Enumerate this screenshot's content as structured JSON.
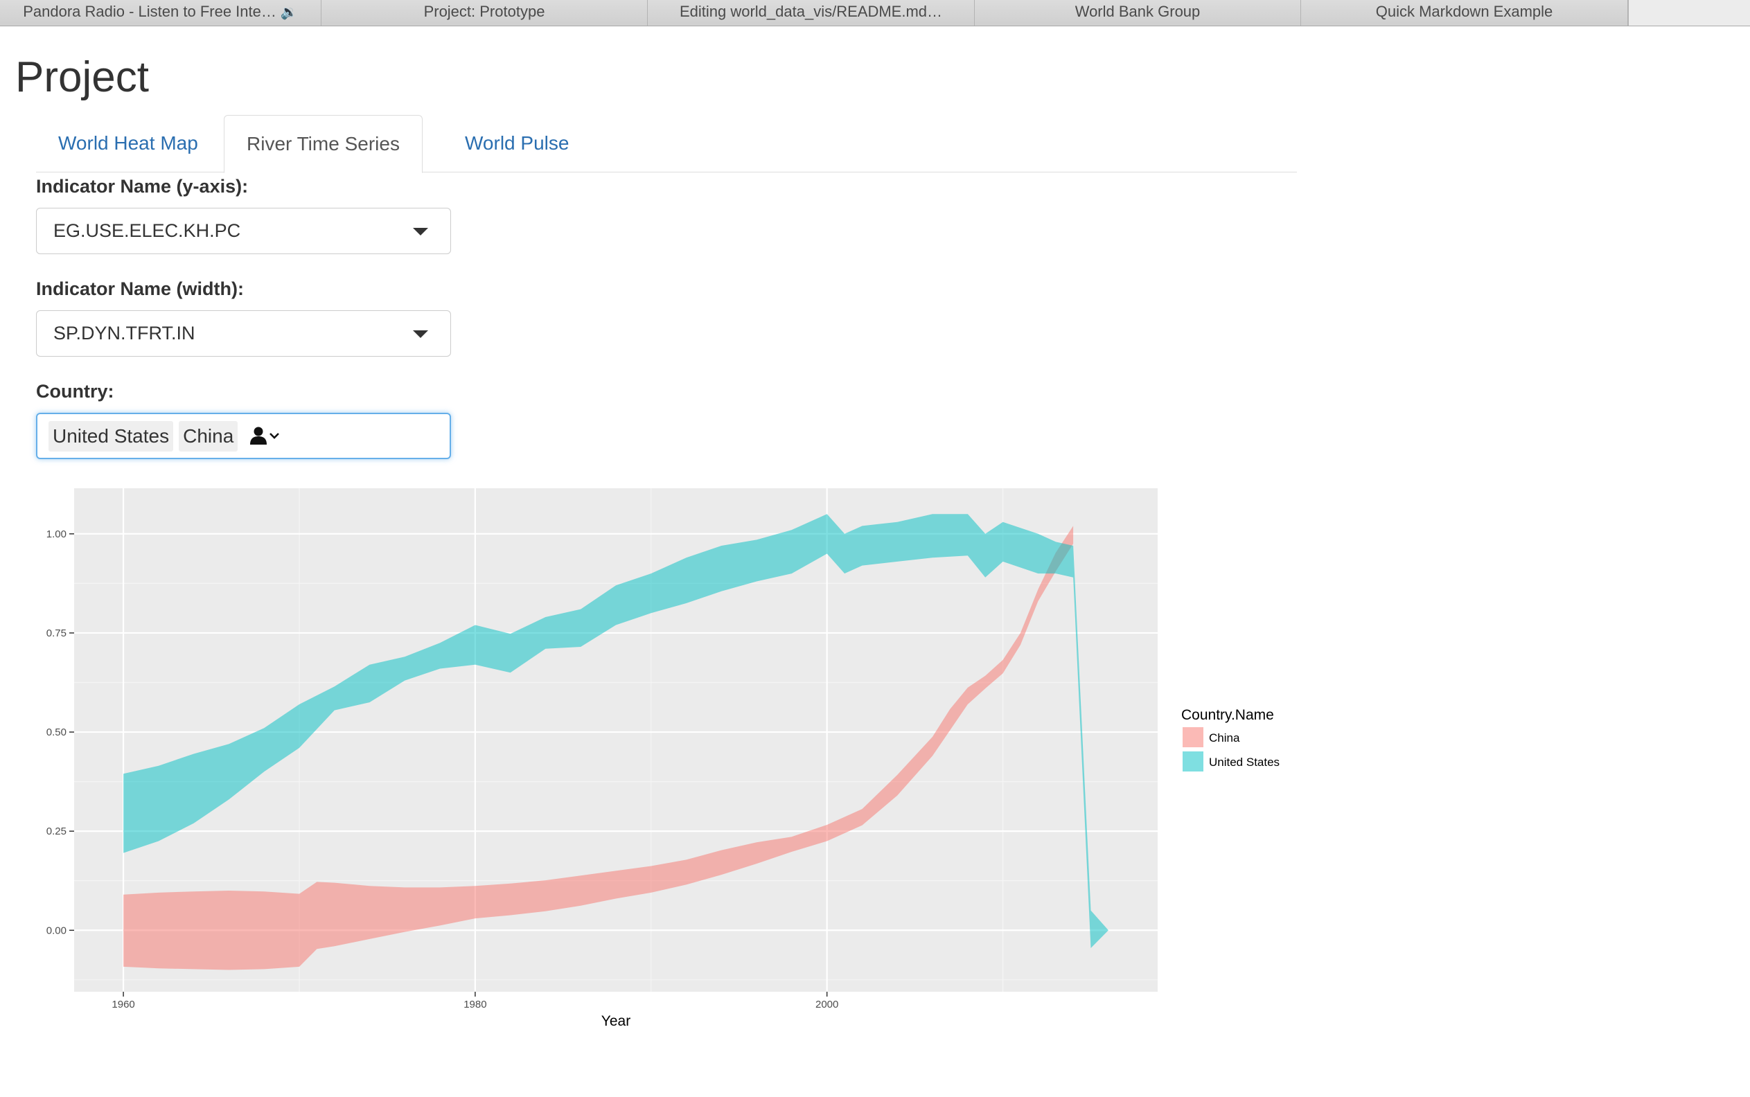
{
  "browser_tabs": [
    {
      "label": "Pandora Radio - Listen to Free Inte…",
      "icon": "speaker-icon"
    },
    {
      "label": "Project: Prototype"
    },
    {
      "label": "Editing world_data_vis/README.md…"
    },
    {
      "label": "World Bank Group"
    },
    {
      "label": "Quick Markdown Example"
    }
  ],
  "page": {
    "title": "Project"
  },
  "nav": {
    "tabs": [
      {
        "label": "World Heat Map",
        "active": false
      },
      {
        "label": "River Time Series",
        "active": true
      },
      {
        "label": "World Pulse",
        "active": false
      }
    ]
  },
  "controls": {
    "y_indicator": {
      "label": "Indicator Name (y-axis):",
      "value": "EG.USE.ELEC.KH.PC"
    },
    "width_indicator": {
      "label": "Indicator Name (width):",
      "value": "SP.DYN.TFRT.IN"
    },
    "country": {
      "label": "Country:",
      "selected": [
        "United States",
        "China"
      ]
    }
  },
  "colors": {
    "china": "#F8766D",
    "united_states": "#00BFC4",
    "panel_bg": "#EBEBEB",
    "link": "#2A6EB0",
    "focus": "#66AFE9"
  },
  "chart_data": {
    "type": "area",
    "title": "",
    "xlabel": "Year",
    "ylabel": "",
    "xlim": [
      1957.2,
      2018.8
    ],
    "ylim": [
      -0.155,
      1.115
    ],
    "x_ticks": [
      1960,
      1980,
      2000
    ],
    "y_ticks": [
      "0.00",
      "0.25",
      "0.50",
      "0.75",
      "1.00"
    ],
    "y_tick_values": [
      0,
      0.25,
      0.5,
      0.75,
      1.0
    ],
    "grid": true,
    "legend_title": "Country.Name",
    "legend_position": "right",
    "series": [
      {
        "name": "China",
        "color": "#F8766D",
        "x": [
          1960,
          1962,
          1964,
          1966,
          1968,
          1970,
          1971,
          1972,
          1974,
          1976,
          1978,
          1980,
          1982,
          1984,
          1986,
          1988,
          1990,
          1992,
          1994,
          1996,
          1998,
          2000,
          2002,
          2004,
          2006,
          2007,
          2008,
          2009,
          2010,
          2011,
          2012,
          2013,
          2014
        ],
        "upper": [
          0.09,
          0.095,
          0.098,
          0.1,
          0.098,
          0.092,
          0.122,
          0.12,
          0.112,
          0.108,
          0.108,
          0.112,
          0.118,
          0.126,
          0.138,
          0.15,
          0.162,
          0.178,
          0.202,
          0.222,
          0.236,
          0.266,
          0.306,
          0.392,
          0.488,
          0.558,
          0.612,
          0.642,
          0.682,
          0.75,
          0.86,
          0.952,
          1.02
        ],
        "lower": [
          -0.092,
          -0.096,
          -0.098,
          -0.1,
          -0.098,
          -0.092,
          -0.047,
          -0.04,
          -0.022,
          -0.004,
          0.012,
          0.03,
          0.038,
          0.048,
          0.062,
          0.08,
          0.095,
          0.115,
          0.14,
          0.168,
          0.198,
          0.225,
          0.265,
          0.34,
          0.44,
          0.505,
          0.57,
          0.61,
          0.648,
          0.72,
          0.83,
          0.905,
          0.975
        ]
      },
      {
        "name": "United States",
        "color": "#00BFC4",
        "x": [
          1960,
          1962,
          1964,
          1966,
          1968,
          1970,
          1972,
          1974,
          1976,
          1978,
          1980,
          1982,
          1984,
          1986,
          1988,
          1990,
          1992,
          1994,
          1996,
          1998,
          2000,
          2001,
          2002,
          2004,
          2006,
          2008,
          2009,
          2010,
          2012,
          2013,
          2014,
          2015,
          2016
        ],
        "upper": [
          0.395,
          0.415,
          0.445,
          0.47,
          0.51,
          0.57,
          0.615,
          0.67,
          0.69,
          0.725,
          0.77,
          0.748,
          0.79,
          0.81,
          0.87,
          0.9,
          0.94,
          0.97,
          0.985,
          1.01,
          1.05,
          1.0,
          1.02,
          1.03,
          1.05,
          1.05,
          1.0,
          1.03,
          1.0,
          0.98,
          0.97,
          0.05,
          0.0
        ],
        "lower": [
          0.195,
          0.225,
          0.27,
          0.33,
          0.4,
          0.46,
          0.555,
          0.575,
          0.63,
          0.66,
          0.67,
          0.65,
          0.71,
          0.715,
          0.77,
          0.8,
          0.825,
          0.855,
          0.88,
          0.9,
          0.95,
          0.9,
          0.92,
          0.93,
          0.94,
          0.945,
          0.89,
          0.93,
          0.9,
          0.9,
          0.89,
          -0.045,
          0.0
        ]
      }
    ]
  }
}
